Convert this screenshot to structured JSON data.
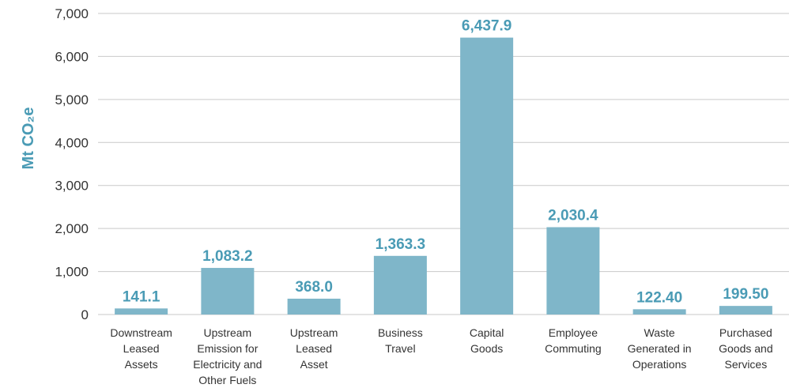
{
  "chart_data": {
    "type": "bar",
    "categories": [
      [
        "Downstream",
        "Leased",
        "Assets"
      ],
      [
        "Upstream",
        "Emission for",
        "Electricity and",
        "Other Fuels"
      ],
      [
        "Upstream",
        "Leased",
        "Asset"
      ],
      [
        "Business",
        "Travel"
      ],
      [
        "Capital",
        "Goods"
      ],
      [
        "Employee",
        "Commuting"
      ],
      [
        "Waste",
        "Generated in",
        "Operations"
      ],
      [
        "Purchased",
        "Goods and",
        "Services"
      ]
    ],
    "values": [
      141.1,
      1083.2,
      368.0,
      1363.3,
      6437.9,
      2030.4,
      122.4,
      199.5
    ],
    "data_labels": [
      "141.1",
      "1,083.2",
      "368.0",
      "1,363.3",
      "6,437.9",
      "2,030.4",
      "122.40",
      "199.50"
    ],
    "ylabel": "Mt CO₂e",
    "ylim": [
      0,
      7000
    ],
    "yticks": [
      0,
      1000,
      2000,
      3000,
      4000,
      5000,
      6000,
      7000
    ],
    "ytick_labels": [
      "0",
      "1,000",
      "2,000",
      "3,000",
      "4,000",
      "5,000",
      "6,000",
      "7,000"
    ],
    "grid": true,
    "bar_color": "#7fb6c9",
    "label_color": "#4a9bb5",
    "grid_color": "#c9c9c9"
  }
}
